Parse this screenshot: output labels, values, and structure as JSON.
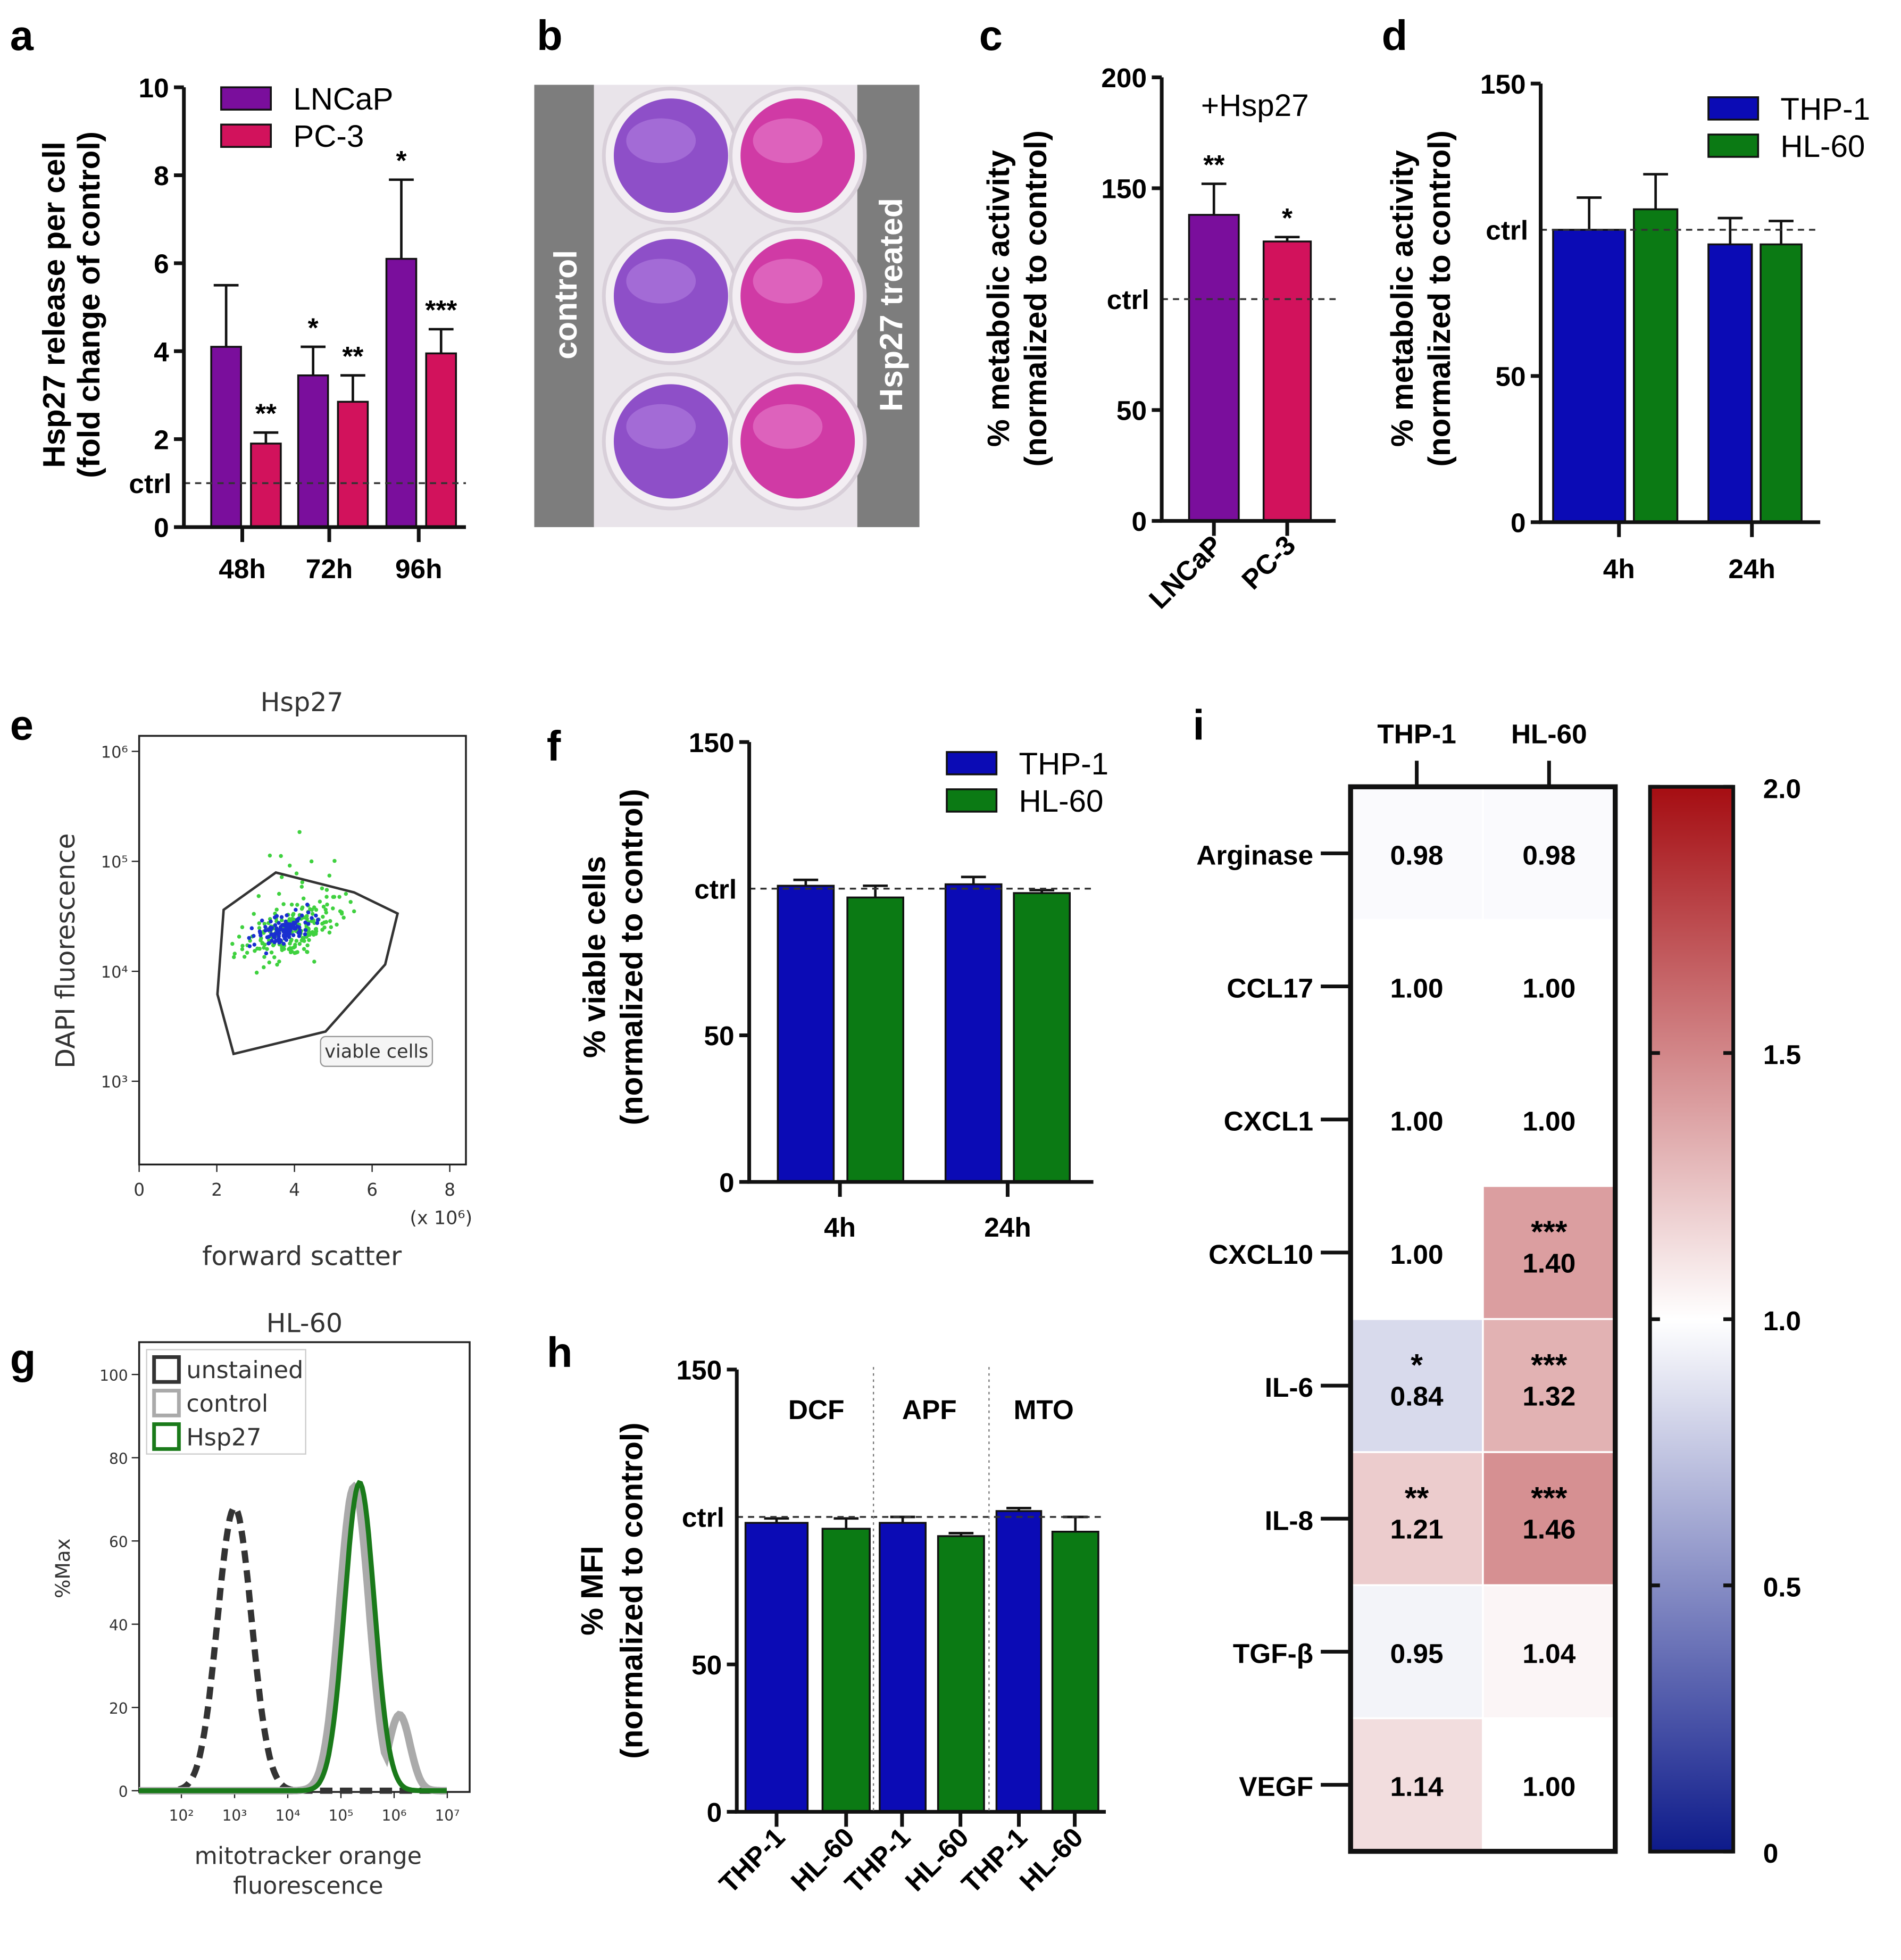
{
  "panel_labels": {
    "a": "a",
    "b": "b",
    "c": "c",
    "d": "d",
    "e": "e",
    "f": "f",
    "g": "g",
    "h": "h",
    "i": "i"
  },
  "colors": {
    "LNCaP": "#7a0e9c",
    "PC-3": "#d2125c",
    "THP-1": "#0b0bb5",
    "HL-60": "#0b7a14"
  },
  "photo_b": {
    "left_label": "control",
    "right_label": "Hsp27 treated"
  },
  "chart_data": [
    {
      "id": "a",
      "type": "bar",
      "ylabel": "Hsp27 release per cell",
      "ylabel2": "(fold change of control)",
      "ylim": [
        0,
        10
      ],
      "yticks": [
        "0",
        "2",
        "4",
        "6",
        "8",
        "10"
      ],
      "ytick_values": [
        0,
        2,
        4,
        6,
        8,
        10
      ],
      "ctrl_label": "ctrl",
      "ctrl_value": 1,
      "categories": [
        "48h",
        "72h",
        "96h"
      ],
      "series": [
        {
          "name": "LNCaP"
        },
        {
          "name": "PC-3"
        }
      ],
      "bars": [
        {
          "category": "48h",
          "series": "LNCaP",
          "value": 4.1,
          "error_top": 5.5,
          "sig": ""
        },
        {
          "category": "48h",
          "series": "PC-3",
          "value": 1.9,
          "error_top": 2.15,
          "sig": "**"
        },
        {
          "category": "72h",
          "series": "LNCaP",
          "value": 3.45,
          "error_top": 4.1,
          "sig": "*"
        },
        {
          "category": "72h",
          "series": "PC-3",
          "value": 2.85,
          "error_top": 3.45,
          "sig": "**"
        },
        {
          "category": "96h",
          "series": "LNCaP",
          "value": 6.1,
          "error_top": 7.9,
          "sig": "*"
        },
        {
          "category": "96h",
          "series": "PC-3",
          "value": 3.95,
          "error_top": 4.5,
          "sig": "***"
        }
      ]
    },
    {
      "id": "c",
      "type": "bar",
      "title": "+Hsp27",
      "ylabel": "% metabolic activity",
      "ylabel2": "(normalized to control)",
      "ylim": [
        0,
        200
      ],
      "yticks": [
        "0",
        "50",
        "150",
        "200"
      ],
      "ytick_values": [
        0,
        50,
        150,
        200
      ],
      "ctrl_label": "ctrl",
      "ctrl_value": 100,
      "categories": [
        "LNCaP",
        "PC-3"
      ],
      "series": [],
      "bars": [
        {
          "category": "LNCaP",
          "series": "LNCaP",
          "value": 138,
          "error_top": 152,
          "sig": "**"
        },
        {
          "category": "PC-3",
          "series": "PC-3",
          "value": 126,
          "error_top": 128,
          "sig": "*"
        }
      ]
    },
    {
      "id": "d",
      "type": "bar",
      "ylabel": "% metabolic activity",
      "ylabel2": "(normalized to control)",
      "ylim": [
        0,
        150
      ],
      "yticks": [
        "0",
        "50",
        "150"
      ],
      "ytick_values": [
        0,
        50,
        150
      ],
      "ctrl_label": "ctrl",
      "ctrl_value": 100,
      "categories": [
        "4h",
        "24h"
      ],
      "series": [
        {
          "name": "THP-1"
        },
        {
          "name": "HL-60"
        }
      ],
      "bars": [
        {
          "category": "4h",
          "series": "THP-1",
          "value": 100,
          "error_top": 111,
          "sig": ""
        },
        {
          "category": "4h",
          "series": "HL-60",
          "value": 107,
          "error_top": 119,
          "sig": ""
        },
        {
          "category": "24h",
          "series": "THP-1",
          "value": 95,
          "error_top": 104,
          "sig": ""
        },
        {
          "category": "24h",
          "series": "HL-60",
          "value": 95,
          "error_top": 103,
          "sig": ""
        }
      ]
    },
    {
      "id": "f",
      "type": "bar",
      "ylabel": "% viable cells",
      "ylabel2": "(normalized to control)",
      "ylim": [
        0,
        150
      ],
      "yticks": [
        "0",
        "50",
        "150"
      ],
      "ytick_values": [
        0,
        50,
        150
      ],
      "ctrl_label": "ctrl",
      "ctrl_value": 100,
      "categories": [
        "4h",
        "24h"
      ],
      "series": [
        {
          "name": "THP-1"
        },
        {
          "name": "HL-60"
        }
      ],
      "bars": [
        {
          "category": "4h",
          "series": "THP-1",
          "value": 101,
          "error_top": 103,
          "sig": ""
        },
        {
          "category": "4h",
          "series": "HL-60",
          "value": 97,
          "error_top": 101,
          "sig": ""
        },
        {
          "category": "24h",
          "series": "THP-1",
          "value": 101.5,
          "error_top": 104,
          "sig": ""
        },
        {
          "category": "24h",
          "series": "HL-60",
          "value": 98.5,
          "error_top": 99.5,
          "sig": ""
        }
      ]
    },
    {
      "id": "h",
      "type": "bar",
      "ylabel": "% MFI",
      "ylabel2": "(normalized to control)",
      "ylim": [
        0,
        150
      ],
      "yticks": [
        "0",
        "50",
        "150"
      ],
      "ytick_values": [
        0,
        50,
        150
      ],
      "ctrl_label": "ctrl",
      "ctrl_value": 100,
      "categories": [
        "THP-1",
        "HL-60",
        "THP-1",
        "HL-60",
        "THP-1",
        "HL-60"
      ],
      "assay_groups": [
        "DCF",
        "APF",
        "MTO"
      ],
      "series": [],
      "bars": [
        {
          "category": "THP-1",
          "series": "THP-1",
          "group": "DCF",
          "value": 98,
          "error_top": 99.5,
          "sig": ""
        },
        {
          "category": "HL-60",
          "series": "HL-60",
          "group": "DCF",
          "value": 96,
          "error_top": 99.5,
          "sig": ""
        },
        {
          "category": "THP-1",
          "series": "THP-1",
          "group": "APF",
          "value": 98,
          "error_top": 100,
          "sig": ""
        },
        {
          "category": "HL-60",
          "series": "HL-60",
          "group": "APF",
          "value": 93.5,
          "error_top": 94.5,
          "sig": ""
        },
        {
          "category": "THP-1",
          "series": "THP-1",
          "group": "MTO",
          "value": 102,
          "error_top": 103,
          "sig": ""
        },
        {
          "category": "HL-60",
          "series": "HL-60",
          "group": "MTO",
          "value": 95,
          "error_top": 100,
          "sig": ""
        }
      ]
    },
    {
      "id": "e",
      "type": "scatter",
      "title": "Hsp27",
      "xlabel": "forward scatter",
      "x_multiplier": "(x 10⁶)",
      "ylabel": "DAPI fluorescence",
      "xticks": [
        "0",
        "2",
        "4",
        "6",
        "8"
      ],
      "yticks": [
        "10³",
        "10⁴",
        "10⁵",
        "10⁶"
      ],
      "gate_label": "viable cells"
    },
    {
      "id": "g",
      "type": "line",
      "title": "HL-60",
      "xlabel": "mitotracker orange",
      "xlabel2": "fluorescence",
      "ylabel": "%Max",
      "xticks": [
        "10²",
        "10³",
        "10⁴",
        "10⁵",
        "10⁶",
        "10⁷"
      ],
      "yticks": [
        "0",
        "20",
        "40",
        "60",
        "80",
        "100"
      ],
      "series": [
        {
          "name": "unstained",
          "peak_log10": 3.0,
          "peak_pct": 68,
          "color": "#333333"
        },
        {
          "name": "control",
          "peak_log10": 5.25,
          "peak_pct": 73,
          "color": "#aaaaaa"
        },
        {
          "name": "Hsp27",
          "peak_log10": 5.35,
          "peak_pct": 74,
          "color": "#1a7a1a"
        }
      ]
    },
    {
      "id": "i",
      "type": "heatmap",
      "columns": [
        "THP-1",
        "HL-60"
      ],
      "rows": [
        "Arginase",
        "CCL17",
        "CXCL1",
        "CXCL10",
        "IL-6",
        "IL-8",
        "TGF-β",
        "VEGF"
      ],
      "values": [
        [
          0.98,
          0.98
        ],
        [
          1.0,
          1.0
        ],
        [
          1.0,
          1.0
        ],
        [
          1.0,
          1.4
        ],
        [
          0.84,
          1.32
        ],
        [
          1.21,
          1.46
        ],
        [
          0.95,
          1.04
        ],
        [
          1.14,
          1.0
        ]
      ],
      "value_labels": [
        [
          "0.98",
          "0.98"
        ],
        [
          "1.00",
          "1.00"
        ],
        [
          "1.00",
          "1.00"
        ],
        [
          "1.00",
          "1.40"
        ],
        [
          "0.84",
          "1.32"
        ],
        [
          "1.21",
          "1.46"
        ],
        [
          "0.95",
          "1.04"
        ],
        [
          "1.14",
          "1.00"
        ]
      ],
      "significance": [
        [
          "",
          ""
        ],
        [
          "",
          ""
        ],
        [
          "",
          ""
        ],
        [
          "",
          "***"
        ],
        [
          "*",
          "***"
        ],
        [
          "**",
          "***"
        ],
        [
          "",
          ""
        ],
        [
          "",
          ""
        ]
      ],
      "colorbar": {
        "range": [
          0,
          2.0
        ],
        "ticks": [
          "0",
          "0.5",
          "1.0",
          "1.5",
          "2.0"
        ],
        "tick_values": [
          0,
          0.5,
          1.0,
          1.5,
          2.0
        ],
        "low_color": "#0d1a8a",
        "mid_color": "#ffffff",
        "high_color": "#a50d12"
      }
    }
  ]
}
